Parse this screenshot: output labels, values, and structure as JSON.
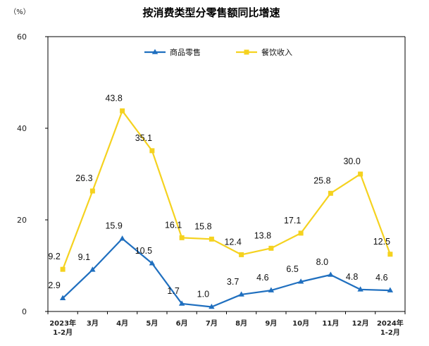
{
  "chart_data": {
    "type": "line",
    "title": "按消费类型分零售额同比增速",
    "y_unit": "（%）",
    "ylim": [
      0,
      60
    ],
    "yticks": [
      0,
      20,
      40,
      60
    ],
    "categories": [
      "2023年\n1-2月",
      "3月",
      "4月",
      "5月",
      "6月",
      "7月",
      "8月",
      "9月",
      "10月",
      "11月",
      "12月",
      "2024年\n1-2月"
    ],
    "series": [
      {
        "name": "商品零售",
        "color": "#1f6fbf",
        "marker": "triangle",
        "values": [
          2.9,
          9.1,
          15.9,
          10.5,
          1.7,
          1.0,
          3.7,
          4.6,
          6.5,
          8.0,
          4.8,
          4.6
        ],
        "labels": [
          "2.9",
          "9.1",
          "15.9",
          "10.5",
          "1.7",
          "1.0",
          "3.7",
          "4.6",
          "6.5",
          "8.0",
          "4.8",
          "4.6"
        ]
      },
      {
        "name": "餐饮收入",
        "color": "#f5d21f",
        "marker": "square",
        "values": [
          9.2,
          26.3,
          43.8,
          35.1,
          16.1,
          15.8,
          12.4,
          13.8,
          17.1,
          25.8,
          30.0,
          12.5
        ],
        "labels": [
          "9.2",
          "26.3",
          "43.8",
          "35.1",
          "16.1",
          "15.8",
          "12.4",
          "13.8",
          "17.1",
          "25.8",
          "30.0",
          "12.5"
        ]
      }
    ],
    "legend": "top-center",
    "grid": false
  }
}
